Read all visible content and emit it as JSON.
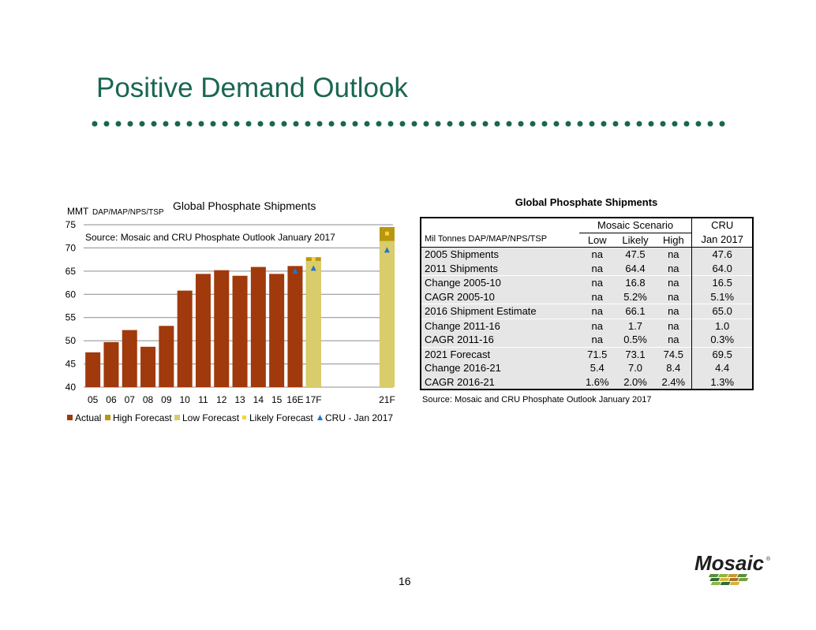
{
  "slide": {
    "title": "Positive Demand Outlook",
    "page_number": "16",
    "accent_color": "#1a6651"
  },
  "logo": {
    "text": "Mosaic",
    "registered_mark": "®"
  },
  "colors": {
    "actual": "#a0390c",
    "high_forecast": "#b8960f",
    "low_forecast": "#d9cc6b",
    "likely_forecast": "#f2d43c",
    "cru": "#1f78c8"
  },
  "chart_data": {
    "type": "bar",
    "title": "Global Phosphate Shipments",
    "unit_label": "MMT",
    "unit_sublabel": "DAP/MAP/NPS/TSP",
    "source_note": "Source:  Mosaic and CRU Phosphate Outlook January 2017",
    "ylim": [
      40,
      75
    ],
    "yticks": [
      40,
      45,
      50,
      55,
      60,
      65,
      70,
      75
    ],
    "grid": true,
    "legend_position": "bottom",
    "categories": [
      "05",
      "06",
      "07",
      "08",
      "09",
      "10",
      "11",
      "12",
      "13",
      "14",
      "15",
      "16E",
      "17F",
      "21F"
    ],
    "series": [
      {
        "name": "Actual",
        "values": [
          47.5,
          49.7,
          52.3,
          48.7,
          53.2,
          60.8,
          64.4,
          65.2,
          64.0,
          65.9,
          64.4,
          66.1,
          null,
          null
        ]
      },
      {
        "name": "High Forecast",
        "values": [
          null,
          null,
          null,
          null,
          null,
          null,
          null,
          null,
          null,
          null,
          null,
          null,
          68.0,
          74.5
        ]
      },
      {
        "name": "Low Forecast",
        "values": [
          null,
          null,
          null,
          null,
          null,
          null,
          null,
          null,
          null,
          null,
          null,
          null,
          67.2,
          71.5
        ]
      },
      {
        "name": "Likely Forecast",
        "values": [
          null,
          null,
          null,
          null,
          null,
          null,
          null,
          null,
          null,
          null,
          null,
          null,
          67.6,
          73.1
        ]
      },
      {
        "name": "CRU - Jan 2017",
        "values": [
          null,
          null,
          null,
          null,
          null,
          null,
          null,
          null,
          null,
          null,
          null,
          65.0,
          65.6,
          69.5
        ]
      }
    ]
  },
  "table": {
    "title": "Global Phosphate Shipments",
    "unit_label": "Mil Tonnes DAP/MAP/NPS/TSP",
    "group_headers": {
      "mosaic": "Mosaic Scenario",
      "cru": "CRU"
    },
    "column_headers": [
      "Low",
      "Likely",
      "High",
      "Jan 2017"
    ],
    "rows": [
      {
        "label": "2005 Shipments",
        "values": [
          "na",
          "47.5",
          "na",
          "47.6"
        ],
        "sep": true
      },
      {
        "label": "2011 Shipments",
        "values": [
          "na",
          "64.4",
          "na",
          "64.0"
        ],
        "sep": false
      },
      {
        "label": "Change 2005-10",
        "values": [
          "na",
          "16.8",
          "na",
          "16.5"
        ],
        "sep": true
      },
      {
        "label": "CAGR 2005-10",
        "values": [
          "na",
          "5.2%",
          "na",
          "5.1%"
        ],
        "sep": false
      },
      {
        "label": "2016 Shipment Estimate",
        "values": [
          "na",
          "66.1",
          "na",
          "65.0"
        ],
        "sep": true
      },
      {
        "label": "Change 2011-16",
        "values": [
          "na",
          "1.7",
          "na",
          "1.0"
        ],
        "sep": true
      },
      {
        "label": "CAGR 2011-16",
        "values": [
          "na",
          "0.5%",
          "na",
          "0.3%"
        ],
        "sep": false
      },
      {
        "label": "2021 Forecast",
        "values": [
          "71.5",
          "73.1",
          "74.5",
          "69.5"
        ],
        "sep": true
      },
      {
        "label": "Change 2016-21",
        "values": [
          "5.4",
          "7.0",
          "8.4",
          "4.4"
        ],
        "sep": false
      },
      {
        "label": "CAGR 2016-21",
        "values": [
          "1.6%",
          "2.0%",
          "2.4%",
          "1.3%"
        ],
        "sep": false
      }
    ],
    "source_note": "Source:  Mosaic and CRU Phosphate Outlook January 2017"
  }
}
